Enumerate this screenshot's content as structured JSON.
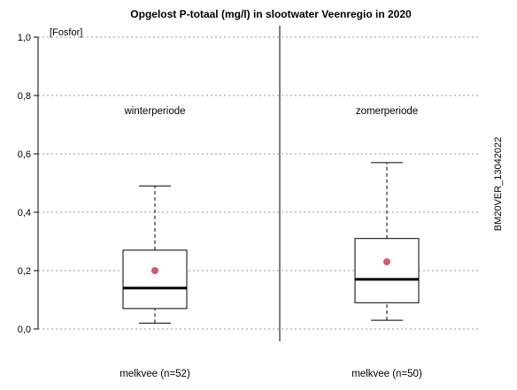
{
  "chart_data": {
    "type": "box",
    "title": "Opgelost P-totaal (mg/l) in slootwater Veenregio in 2020",
    "ylabel": "[Fosfor]",
    "ylim": [
      0,
      1.0
    ],
    "yticks": [
      "0,0",
      "0,2",
      "0,4",
      "0,6",
      "0,8",
      "1,0"
    ],
    "grid": "horizontal dotted",
    "side_label": "BM20VER_13042022",
    "panels": [
      {
        "name": "winterperiode",
        "category": "melkvee (n=52)",
        "whisker_low": 0.02,
        "q1": 0.07,
        "median": 0.14,
        "q3": 0.27,
        "whisker_high": 0.49,
        "mean": 0.2
      },
      {
        "name": "zomerperiode",
        "category": "melkvee (n=50)",
        "whisker_low": 0.03,
        "q1": 0.09,
        "median": 0.17,
        "q3": 0.31,
        "whisker_high": 0.57,
        "mean": 0.23
      }
    ],
    "colors": {
      "mean_marker": "#d05a70",
      "box": "#000000",
      "grid": "#999999"
    }
  }
}
